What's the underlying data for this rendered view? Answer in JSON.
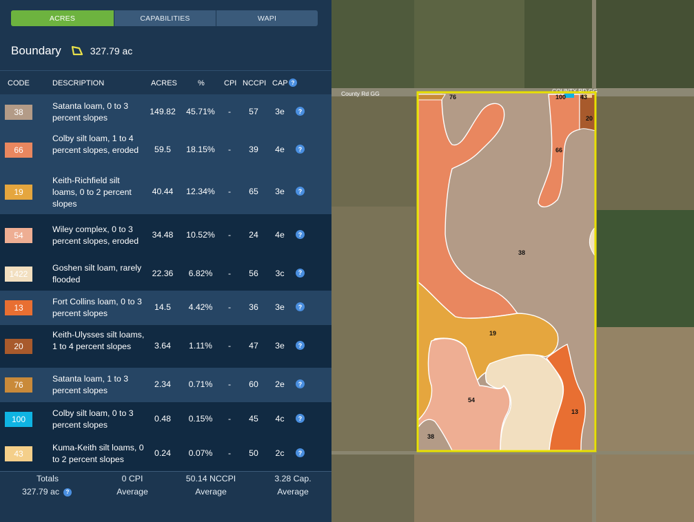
{
  "tabs": [
    {
      "label": "ACRES"
    },
    {
      "label": "CAPABILITIES"
    },
    {
      "label": "WAPI"
    }
  ],
  "boundary": {
    "title": "Boundary",
    "acres": "327.79 ac"
  },
  "headers": {
    "code": "CODE",
    "description": "DESCRIPTION",
    "acres": "ACRES",
    "pct": "%",
    "cpi": "CPI",
    "nccpi": "NCCPI",
    "cap": "CAP"
  },
  "rows": [
    {
      "code": "38",
      "color": "#b39b87",
      "description": "Satanta loam, 0 to 3 percent slopes",
      "acres": "149.82",
      "pct": "45.71%",
      "cpi": "-",
      "nccpi": "57",
      "cap": "3e"
    },
    {
      "code": "66",
      "color": "#e9875f",
      "description": "Colby silt loam, 1 to 4 percent slopes, eroded",
      "acres": "59.5",
      "pct": "18.15%",
      "cpi": "-",
      "nccpi": "39",
      "cap": "4e"
    },
    {
      "code": "19",
      "color": "#e5a63e",
      "description": "Keith-Richfield silt loams, 0 to 2 percent slopes",
      "acres": "40.44",
      "pct": "12.34%",
      "cpi": "-",
      "nccpi": "65",
      "cap": "3e"
    },
    {
      "code": "54",
      "color": "#eeae93",
      "description": "Wiley complex, 0 to 3 percent slopes, eroded",
      "acres": "34.48",
      "pct": "10.52%",
      "cpi": "-",
      "nccpi": "24",
      "cap": "4e"
    },
    {
      "code": "1422",
      "color": "#f2dfc0",
      "description": "Goshen silt loam, rarely flooded",
      "acres": "22.36",
      "pct": "6.82%",
      "cpi": "-",
      "nccpi": "56",
      "cap": "3c"
    },
    {
      "code": "13",
      "color": "#e86f32",
      "description": "Fort Collins loam, 0 to 3 percent slopes",
      "acres": "14.5",
      "pct": "4.42%",
      "cpi": "-",
      "nccpi": "36",
      "cap": "3e"
    },
    {
      "code": "20",
      "color": "#a85a2c",
      "description": "Keith-Ulysses silt loams, 1 to 4 percent slopes",
      "acres": "3.64",
      "pct": "1.11%",
      "cpi": "-",
      "nccpi": "47",
      "cap": "3e"
    },
    {
      "code": "76",
      "color": "#c98a3a",
      "description": "Satanta loam, 1 to 3 percent slopes",
      "acres": "2.34",
      "pct": "0.71%",
      "cpi": "-",
      "nccpi": "60",
      "cap": "2e"
    },
    {
      "code": "100",
      "color": "#0fb4e3",
      "description": "Colby silt loam, 0 to 3 percent slopes",
      "acres": "0.48",
      "pct": "0.15%",
      "cpi": "-",
      "nccpi": "45",
      "cap": "4c"
    },
    {
      "code": "43",
      "color": "#f4cf8a",
      "description": "Kuma-Keith silt loams, 0 to 2 percent slopes",
      "acres": "0.24",
      "pct": "0.07%",
      "cpi": "-",
      "nccpi": "50",
      "cap": "2c"
    }
  ],
  "totals": {
    "label": "Totals",
    "acres": "327.79 ac",
    "cpi": "0 CPI",
    "cpi_sub": "Average",
    "nccpi": "50.14 NCCPI",
    "nccpi_sub": "Average",
    "cap": "3.28 Cap.",
    "cap_sub": "Average"
  },
  "map": {
    "roads": {
      "left": "County Rd GG",
      "right": "COUNTY RD GG"
    },
    "labels": {
      "l76": "76",
      "l100": "100",
      "l43": "43",
      "l20": "20",
      "l66": "66",
      "l38": "38",
      "l19": "19",
      "l54": "54",
      "l13": "13",
      "l38b": "38"
    }
  },
  "icons": {
    "boundary": "polygon-icon",
    "info": "info-icon"
  }
}
